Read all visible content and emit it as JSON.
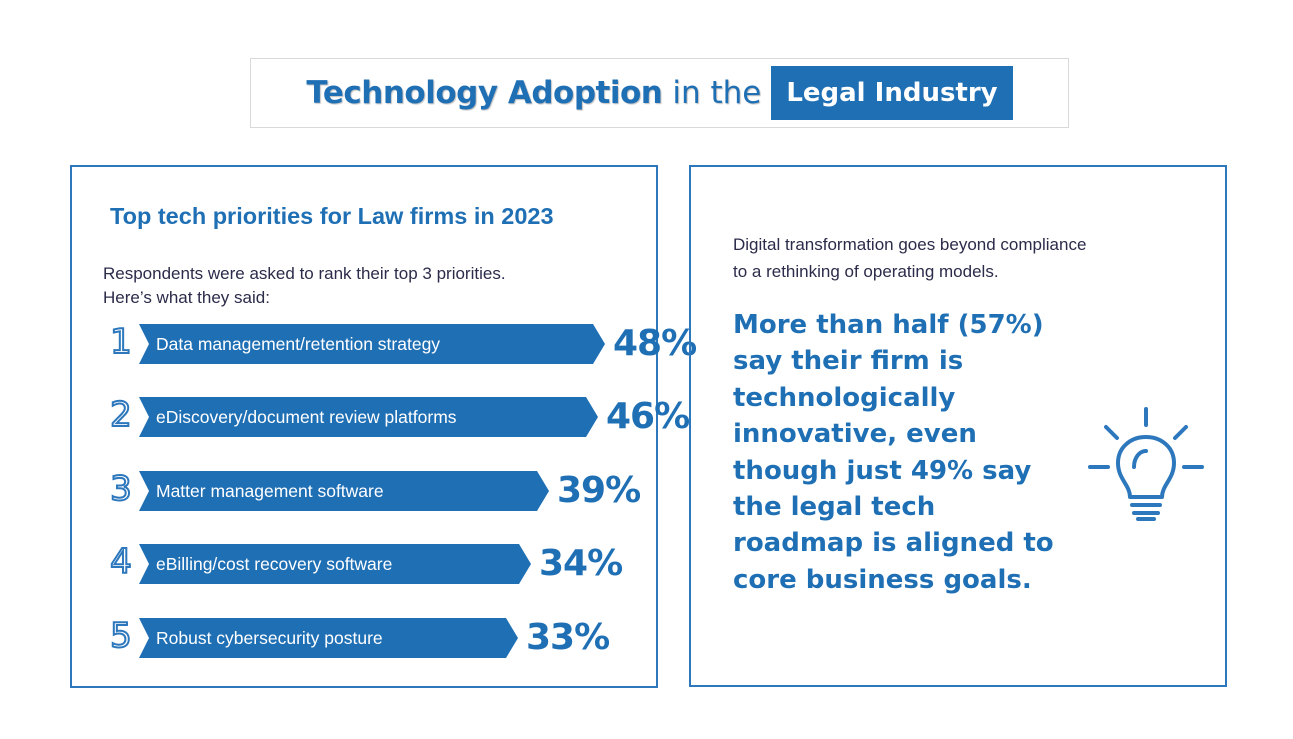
{
  "header": {
    "title_bold": "Technology Adoption",
    "title_mid": "in the",
    "title_highlight": "Legal Industry"
  },
  "left_panel": {
    "heading": "Top tech priorities for Law firms in 2023",
    "intro_line1": "Respondents were asked to rank their top 3 priorities.",
    "intro_line2": "Here’s what they said:"
  },
  "chart_data": {
    "type": "bar",
    "title": "Top tech priorities for Law firms in 2023",
    "ranks": [
      "1",
      "2",
      "3",
      "4",
      "5"
    ],
    "categories": [
      "Data management/retention strategy",
      "eDiscovery/document review platforms",
      "Matter management software",
      "eBilling/cost recovery software",
      "Robust cybersecurity posture"
    ],
    "values": [
      48,
      46,
      39,
      34,
      33
    ],
    "value_labels": [
      "48%",
      "46%",
      "39%",
      "34%",
      "33%"
    ],
    "unit": "%",
    "orientation": "horizontal",
    "ylim": [
      0,
      100
    ],
    "bar_color": "#1f6fb5"
  },
  "right_panel": {
    "intro_line1": "Digital transformation goes beyond compliance",
    "intro_line2": "to a rethinking of operating models.",
    "big_text": "More than half (57%) say their firm is technologically innovative, even though just 49% say the legal tech roadmap is aligned to core business goals.",
    "icon": "lightbulb-icon"
  },
  "colors": {
    "accent": "#1f6fb5",
    "border": "#2d78bd",
    "body_text": "#2b2b4a"
  }
}
